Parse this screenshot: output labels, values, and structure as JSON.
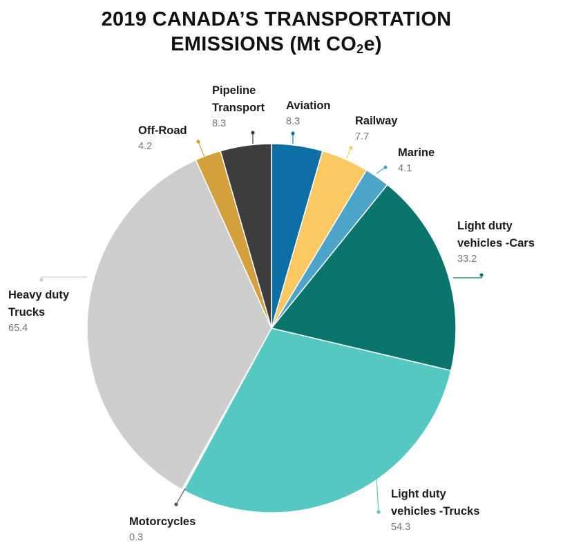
{
  "title": {
    "line1": "2019 CANADA’S TRANSPORTATION",
    "line2_prefix": "EMISSIONS (Mt CO",
    "line2_sub": "2",
    "line2_suffix": "e)"
  },
  "chart_data": {
    "type": "pie",
    "title": "2019 CANADA’S TRANSPORTATION EMISSIONS (Mt CO2e)",
    "unit": "Mt CO2e",
    "slices": [
      {
        "key": "aviation",
        "label_lines": [
          "Aviation"
        ],
        "value": 8.3,
        "value_text": "8.3",
        "color": "#0e6fa6"
      },
      {
        "key": "railway",
        "label_lines": [
          "Railway"
        ],
        "value": 7.7,
        "value_text": "7.7",
        "color": "#fbc862"
      },
      {
        "key": "marine",
        "label_lines": [
          "Marine"
        ],
        "value": 4.1,
        "value_text": "4.1",
        "color": "#4da4c9"
      },
      {
        "key": "ldv-cars",
        "label_lines": [
          "Light duty",
          "vehicles -Cars"
        ],
        "value": 33.2,
        "value_text": "33.2",
        "color": "#09756c"
      },
      {
        "key": "ldv-trucks",
        "label_lines": [
          "Light duty",
          "vehicles -Trucks"
        ],
        "value": 54.3,
        "value_text": "54.3",
        "color": "#55c8c1"
      },
      {
        "key": "motorcycles",
        "label_lines": [
          "Motorcycles"
        ],
        "value": 0.3,
        "value_text": "0.3",
        "color": "#ffffff"
      },
      {
        "key": "heavy-trucks",
        "label_lines": [
          "Heavy duty",
          "Trucks"
        ],
        "value": 65.4,
        "value_text": "65.4",
        "color": "#cdcdcd"
      },
      {
        "key": "off-road",
        "label_lines": [
          "Off-Road"
        ],
        "value": 4.2,
        "value_text": "4.2",
        "color": "#d4a03c"
      },
      {
        "key": "pipeline",
        "label_lines": [
          "Pipeline",
          "Transport"
        ],
        "value": 8.3,
        "value_text": "8.3",
        "color": "#3d3d3d"
      }
    ]
  }
}
